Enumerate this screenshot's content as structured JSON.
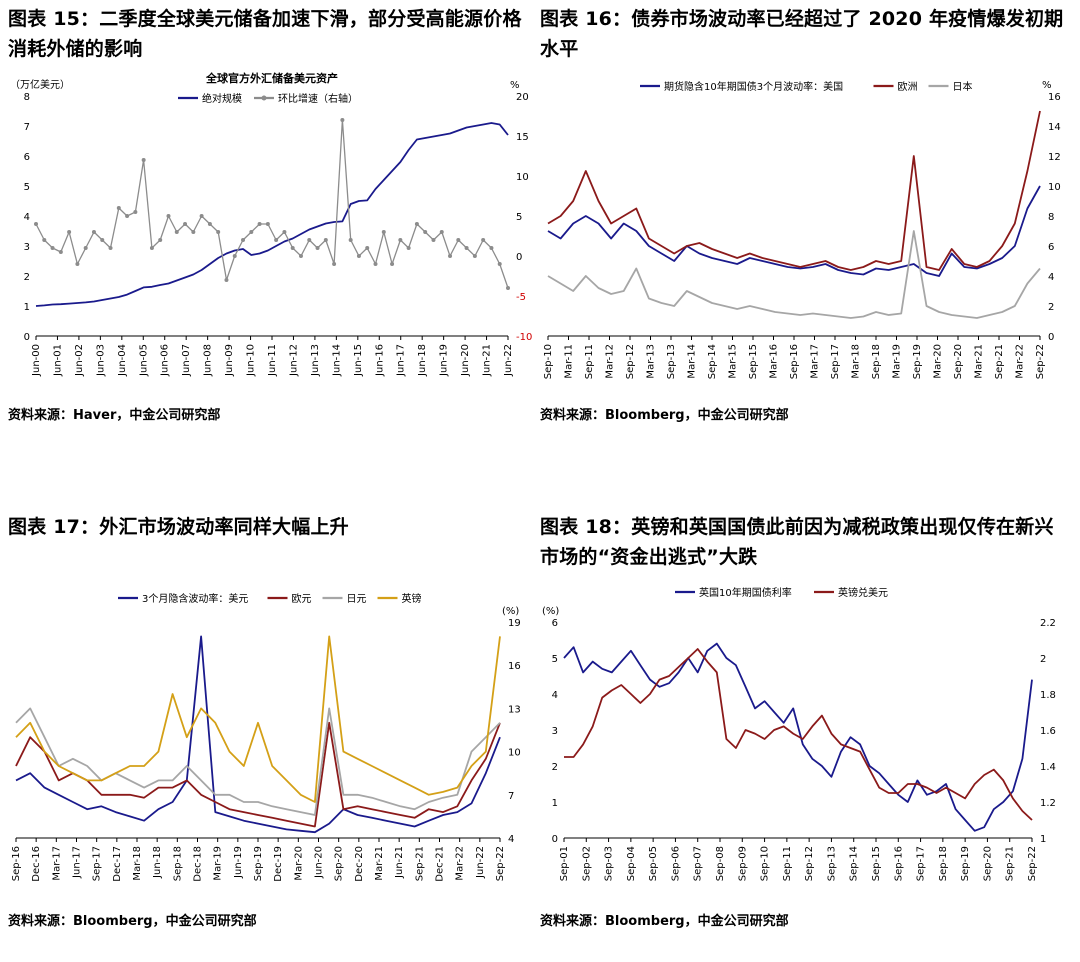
{
  "panels": [
    {
      "title": "图表 15：二季度全球美元储备加速下滑，部分受高能源价格消耗外储的影响",
      "source": "资料来源：Haver，中金公司研究部"
    },
    {
      "title": "图表 16：债券市场波动率已经超过了 2020 年疫情爆发初期水平",
      "source": "资料来源：Bloomberg，中金公司研究部"
    },
    {
      "title": "图表 17：外汇市场波动率同样大幅上升",
      "source": "资料来源：Bloomberg，中金公司研究部"
    },
    {
      "title": "图表 18：英镑和英国国债此前因为减税政策出现仅传在新兴市场的“资金出逃式”大跌",
      "source": "资料来源：Bloomberg，中金公司研究部"
    }
  ],
  "chart_data": [
    {
      "type": "line",
      "title": "全球官方外汇储备美元资产",
      "ylabel_left": "（万亿美元）",
      "ylabel_right": "%",
      "ylim_left": [
        0,
        8
      ],
      "ylim_right": [
        -10,
        20
      ],
      "yticks_left": [
        "0",
        "1",
        "2",
        "3",
        "4",
        "5",
        "6",
        "7",
        "8"
      ],
      "yticks_right": [
        "-10",
        "-5",
        "0",
        "5",
        "10",
        "15",
        "20"
      ],
      "xticks": [
        "Jun-00",
        "Jun-01",
        "Jun-02",
        "Jun-03",
        "Jun-04",
        "Jun-05",
        "Jun-06",
        "Jun-07",
        "Jun-08",
        "Jun-09",
        "Jun-10",
        "Jun-11",
        "Jun-12",
        "Jun-13",
        "Jun-14",
        "Jun-15",
        "Jun-16",
        "Jun-17",
        "Jun-18",
        "Jun-19",
        "Jun-20",
        "Jun-21",
        "Jun-22"
      ],
      "legend_position": "top-center",
      "series": [
        {
          "name": "绝对规模",
          "axis": "left",
          "color": "#1a1a8c",
          "values": [
            1.0,
            1.02,
            1.05,
            1.06,
            1.08,
            1.1,
            1.12,
            1.15,
            1.2,
            1.25,
            1.3,
            1.38,
            1.5,
            1.62,
            1.64,
            1.7,
            1.75,
            1.85,
            1.95,
            2.05,
            2.2,
            2.4,
            2.6,
            2.75,
            2.85,
            2.9,
            2.7,
            2.75,
            2.85,
            3.0,
            3.15,
            3.25,
            3.4,
            3.55,
            3.65,
            3.75,
            3.8,
            3.82,
            4.4,
            4.5,
            4.52,
            4.9,
            5.2,
            5.5,
            5.8,
            6.2,
            6.55,
            6.6,
            6.65,
            6.7,
            6.75,
            6.85,
            6.95,
            7.0,
            7.05,
            7.1,
            7.05,
            6.7
          ]
        },
        {
          "name": "环比增速（右轴）",
          "axis": "right",
          "color": "#8c8c8c",
          "values": [
            4,
            2,
            1,
            0.5,
            3,
            -1,
            1,
            3,
            2,
            1,
            6,
            5,
            5.5,
            12,
            1,
            2,
            5,
            3,
            4,
            3,
            5,
            4,
            3,
            -3,
            0,
            2,
            3,
            4,
            4,
            2,
            3,
            1,
            0,
            2,
            1,
            2,
            -1,
            17,
            2,
            0,
            1,
            -1,
            3,
            -1,
            2,
            1,
            4,
            3,
            2,
            3,
            0,
            2,
            1,
            0,
            2,
            1,
            -1,
            -4
          ]
        }
      ]
    },
    {
      "type": "line",
      "legend": [
        "期货隐含10年期国债3个月波动率：美国",
        "欧洲",
        "日本"
      ],
      "ylabel_right": "%",
      "ylim_right": [
        0,
        16
      ],
      "yticks_right": [
        "0",
        "2",
        "4",
        "6",
        "8",
        "10",
        "12",
        "14",
        "16"
      ],
      "xticks": [
        "Sep-10",
        "Mar-11",
        "Sep-11",
        "Mar-12",
        "Sep-12",
        "Mar-13",
        "Sep-13",
        "Mar-14",
        "Sep-14",
        "Mar-15",
        "Sep-15",
        "Mar-16",
        "Sep-16",
        "Mar-17",
        "Sep-17",
        "Mar-18",
        "Sep-18",
        "Mar-19",
        "Sep-19",
        "Mar-20",
        "Sep-20",
        "Mar-21",
        "Sep-21",
        "Mar-22",
        "Sep-22"
      ],
      "legend_position": "top-center",
      "series": [
        {
          "name": "期货隐含10年期国债3个月波动率：美国",
          "color": "#1a1a8c",
          "values": [
            7,
            6.5,
            7.5,
            8,
            7.5,
            6.5,
            7.5,
            7,
            6,
            5.5,
            5,
            6,
            5.5,
            5.2,
            5,
            4.8,
            5.2,
            5,
            4.8,
            4.6,
            4.5,
            4.6,
            4.8,
            4.4,
            4.2,
            4.1,
            4.5,
            4.4,
            4.6,
            4.8,
            4.2,
            4.0,
            5.5,
            4.6,
            4.5,
            4.8,
            5.2,
            6.0,
            8.5,
            10
          ]
        },
        {
          "name": "欧洲",
          "color": "#8b1a1a",
          "values": [
            7.5,
            8,
            9,
            11,
            9,
            7.5,
            8,
            8.5,
            6.5,
            6,
            5.5,
            6,
            6.2,
            5.8,
            5.5,
            5.2,
            5.5,
            5.2,
            5,
            4.8,
            4.6,
            4.8,
            5,
            4.6,
            4.4,
            4.6,
            5,
            4.8,
            5,
            12,
            4.6,
            4.4,
            5.8,
            4.8,
            4.6,
            5,
            6.0,
            7.5,
            11,
            15
          ]
        },
        {
          "name": "日本",
          "color": "#a6a6a6",
          "values": [
            4,
            3.5,
            3,
            4,
            3.2,
            2.8,
            3,
            4.5,
            2.5,
            2.2,
            2,
            3,
            2.6,
            2.2,
            2,
            1.8,
            2,
            1.8,
            1.6,
            1.5,
            1.4,
            1.5,
            1.4,
            1.3,
            1.2,
            1.3,
            1.6,
            1.4,
            1.5,
            7,
            2,
            1.6,
            1.4,
            1.3,
            1.2,
            1.4,
            1.6,
            2,
            3.5,
            4.5
          ]
        }
      ]
    },
    {
      "type": "line",
      "legend": [
        "3个月隐含波动率：美元",
        "欧元",
        "日元",
        "英镑"
      ],
      "ylabel_right": "(%)",
      "ylim_right": [
        4,
        19
      ],
      "yticks_right": [
        "4",
        "7",
        "10",
        "13",
        "16",
        "19"
      ],
      "xticks": [
        "Sep-16",
        "Dec-16",
        "Mar-17",
        "Jun-17",
        "Sep-17",
        "Dec-17",
        "Mar-18",
        "Jun-18",
        "Sep-18",
        "Dec-18",
        "Mar-19",
        "Jun-19",
        "Sep-19",
        "Dec-19",
        "Mar-20",
        "Jun-20",
        "Sep-20",
        "Dec-20",
        "Mar-21",
        "Jun-21",
        "Sep-21",
        "Dec-21",
        "Mar-22",
        "Jun-22",
        "Sep-22"
      ],
      "legend_position": "top-center",
      "series": [
        {
          "name": "3个月隐含波动率：美元",
          "color": "#1a1a8c",
          "values": [
            8,
            8.5,
            7.5,
            7,
            6.5,
            6,
            6.2,
            5.8,
            5.5,
            5.2,
            6,
            6.5,
            8,
            18,
            5.8,
            5.5,
            5.2,
            5,
            4.8,
            4.6,
            4.5,
            4.4,
            5,
            6,
            5.6,
            5.4,
            5.2,
            5,
            4.8,
            5.2,
            5.6,
            5.8,
            6.4,
            8.5,
            11
          ]
        },
        {
          "name": "欧元",
          "color": "#8b1a1a",
          "values": [
            9,
            11,
            10,
            8,
            8.5,
            8,
            7,
            7,
            7,
            6.8,
            7.5,
            7.5,
            8,
            7,
            6.5,
            6,
            5.8,
            5.6,
            5.4,
            5.2,
            5,
            4.8,
            12,
            6,
            6.2,
            6,
            5.8,
            5.6,
            5.4,
            6,
            5.8,
            6.2,
            8,
            9.5,
            12
          ]
        },
        {
          "name": "日元",
          "color": "#a6a6a6",
          "values": [
            12,
            13,
            11,
            9,
            9.5,
            9,
            8,
            8.5,
            8,
            7.5,
            8,
            8,
            9,
            8,
            7,
            7,
            6.5,
            6.5,
            6.2,
            6,
            5.8,
            5.6,
            13,
            7,
            7,
            6.8,
            6.5,
            6.2,
            6,
            6.5,
            6.8,
            7,
            10,
            11,
            12
          ]
        },
        {
          "name": "英镑",
          "color": "#d4a017",
          "values": [
            11,
            12,
            10,
            9,
            8.5,
            8,
            8,
            8.5,
            9,
            9,
            10,
            14,
            11,
            13,
            12,
            10,
            9,
            12,
            9,
            8,
            7,
            6.5,
            18,
            10,
            9.5,
            9,
            8.5,
            8,
            7.5,
            7,
            7.2,
            7.5,
            9,
            10,
            18
          ]
        }
      ]
    },
    {
      "type": "line",
      "legend": [
        "英国10年期国债利率",
        "英镑兑美元"
      ],
      "ylabel_left": "(%)",
      "ylim_left": [
        0,
        6
      ],
      "ylim_right": [
        1.0,
        2.2
      ],
      "yticks_left": [
        "0",
        "1",
        "2",
        "3",
        "4",
        "5",
        "6"
      ],
      "yticks_right": [
        "1",
        "1.2",
        "1.4",
        "1.6",
        "1.8",
        "2",
        "2.2"
      ],
      "xticks": [
        "Sep-01",
        "Sep-02",
        "Sep-03",
        "Sep-04",
        "Sep-05",
        "Sep-06",
        "Sep-07",
        "Sep-08",
        "Sep-09",
        "Sep-10",
        "Sep-11",
        "Sep-12",
        "Sep-13",
        "Sep-14",
        "Sep-15",
        "Sep-16",
        "Sep-17",
        "Sep-18",
        "Sep-19",
        "Sep-20",
        "Sep-21",
        "Sep-22"
      ],
      "legend_position": "top-center",
      "series": [
        {
          "name": "英国10年期国债利率",
          "axis": "left",
          "color": "#1a1a8c",
          "values": [
            5.0,
            5.3,
            4.6,
            4.9,
            4.7,
            4.6,
            4.9,
            5.2,
            4.8,
            4.4,
            4.2,
            4.3,
            4.6,
            5.0,
            4.6,
            5.2,
            5.4,
            5.0,
            4.8,
            4.2,
            3.6,
            3.8,
            3.5,
            3.2,
            3.6,
            2.6,
            2.2,
            2.0,
            1.7,
            2.4,
            2.8,
            2.6,
            2.0,
            1.8,
            1.5,
            1.2,
            1.0,
            1.6,
            1.2,
            1.3,
            1.5,
            0.8,
            0.5,
            0.2,
            0.3,
            0.8,
            1.0,
            1.3,
            2.2,
            4.4
          ]
        },
        {
          "name": "英镑兑美元",
          "axis": "right",
          "color": "#8b1a1a",
          "values": [
            1.45,
            1.45,
            1.52,
            1.62,
            1.78,
            1.82,
            1.85,
            1.8,
            1.75,
            1.8,
            1.88,
            1.9,
            1.95,
            2.0,
            2.05,
            1.98,
            1.92,
            1.55,
            1.5,
            1.6,
            1.58,
            1.55,
            1.6,
            1.62,
            1.58,
            1.55,
            1.62,
            1.68,
            1.58,
            1.52,
            1.5,
            1.48,
            1.38,
            1.28,
            1.25,
            1.25,
            1.3,
            1.3,
            1.28,
            1.25,
            1.28,
            1.25,
            1.22,
            1.3,
            1.35,
            1.38,
            1.32,
            1.22,
            1.15,
            1.1
          ]
        }
      ]
    }
  ]
}
